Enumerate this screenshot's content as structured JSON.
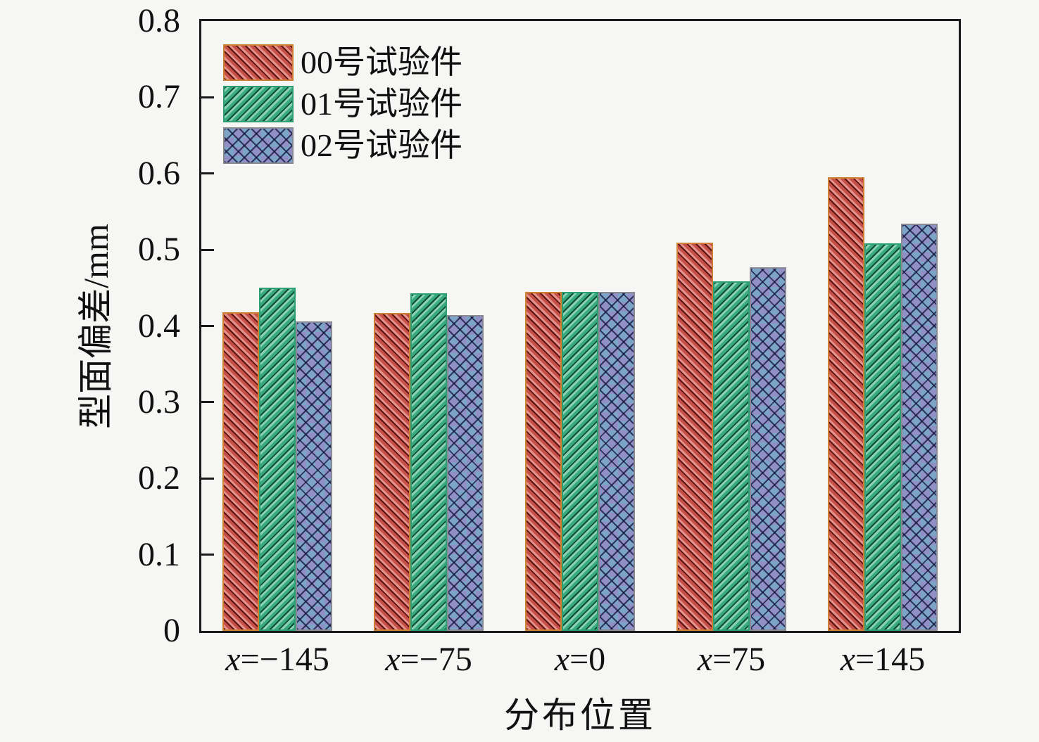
{
  "figure": {
    "background": "#f6f6f4",
    "axis_color": "#1a1a1a"
  },
  "chart_data": {
    "type": "bar",
    "title": "",
    "xlabel": "分布位置",
    "ylabel": "型面偏差/mm",
    "categories": [
      "x=−145",
      "x=−75",
      "x=0",
      "x=75",
      "x=145"
    ],
    "series": [
      {
        "name": "00号试验件",
        "color": "#d0544c",
        "hatch": "\\\\",
        "values": [
          0.418,
          0.417,
          0.445,
          0.509,
          0.595
        ]
      },
      {
        "name": "01号试验件",
        "color": "#3cb287",
        "hatch": "//",
        "values": [
          0.45,
          0.443,
          0.445,
          0.459,
          0.508
        ]
      },
      {
        "name": "02号试验件",
        "color": "#9190c6",
        "color2": "#7ba4c6",
        "hatch": "xx",
        "values": [
          0.406,
          0.414,
          0.445,
          0.477,
          0.534
        ]
      }
    ],
    "ylim": [
      0,
      0.8
    ],
    "yticks": [
      "0",
      "0.1",
      "0.2",
      "0.3",
      "0.4",
      "0.5",
      "0.6",
      "0.7",
      "0.8"
    ],
    "grid": false,
    "legend_position": "upper left"
  }
}
